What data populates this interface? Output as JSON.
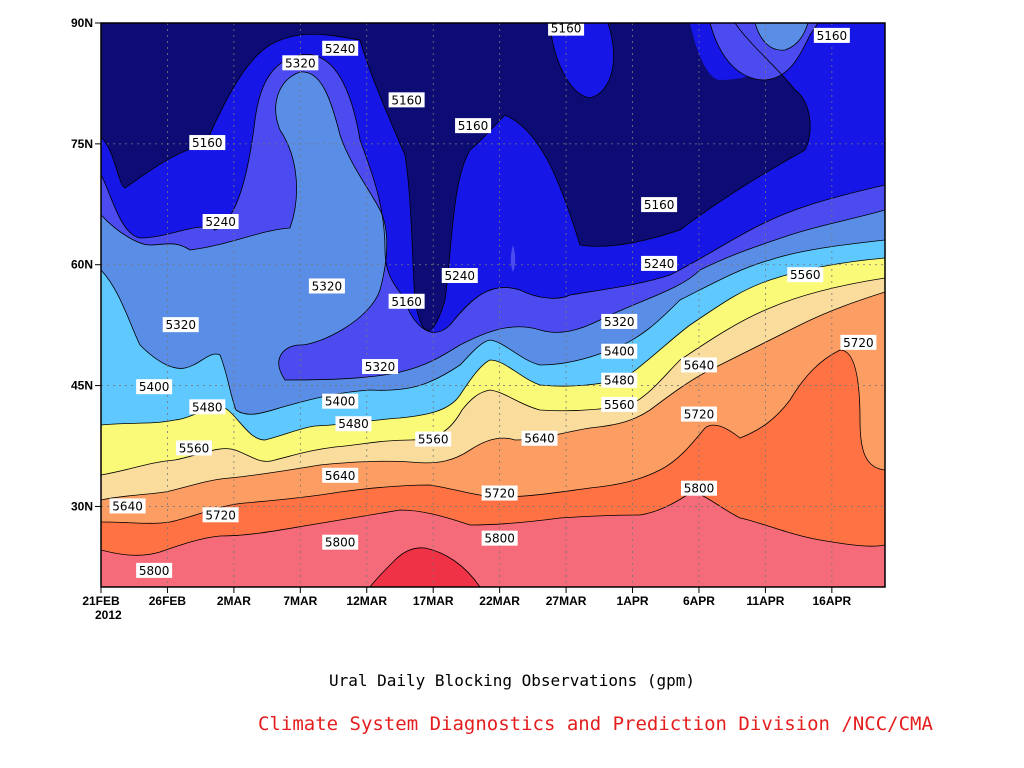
{
  "chart_data": {
    "type": "heatmap",
    "subtype": "filled-contour",
    "title": "Ural Daily Blocking Observations (gpm)",
    "x_label_year": "2012",
    "x_ticks": [
      "21FEB",
      "26FEB",
      "2MAR",
      "7MAR",
      "12MAR",
      "17MAR",
      "22MAR",
      "27MAR",
      "1APR",
      "6APR",
      "11APR",
      "16APR"
    ],
    "x_tick_dates": [
      "2012-02-21",
      "2012-02-26",
      "2012-03-02",
      "2012-03-07",
      "2012-03-12",
      "2012-03-17",
      "2012-03-22",
      "2012-03-27",
      "2012-04-01",
      "2012-04-06",
      "2012-04-11",
      "2012-04-16"
    ],
    "xlim": [
      "2012-02-21",
      "2012-04-20"
    ],
    "y_ticks": [
      "30N",
      "45N",
      "60N",
      "75N",
      "90N"
    ],
    "ylim": [
      20,
      90
    ],
    "units": "gpm",
    "contour_levels": [
      5160,
      5240,
      5320,
      5400,
      5480,
      5560,
      5640,
      5720,
      5800
    ],
    "level_colors": {
      "below_5160": "#0c0c74",
      "5160_5240": "#1616e6",
      "5240_5320": "#4b4bf0",
      "5320_5400": "#5a8ee6",
      "5400_5480": "#5ec8ff",
      "5480_5560": "#fafa78",
      "5560_5640": "#fadc9c",
      "5640_5720": "#fc9e63",
      "5720_5800": "#ff7244",
      "5800_5880": "#f56b79",
      "above_5880": "#f03246"
    },
    "contour_labels": [
      {
        "value": "5160",
        "date": "2012-03-27",
        "lat": 89.3
      },
      {
        "value": "5160",
        "date": "2012-04-16",
        "lat": 88.4
      },
      {
        "value": "5240",
        "date": "2012-03-10",
        "lat": 86.8
      },
      {
        "value": "5320",
        "date": "2012-03-07",
        "lat": 85.0
      },
      {
        "value": "5160",
        "date": "2012-03-15",
        "lat": 80.4
      },
      {
        "value": "5160",
        "date": "2012-03-20",
        "lat": 77.2
      },
      {
        "value": "5160",
        "date": "2012-02-29",
        "lat": 75.1
      },
      {
        "value": "5160",
        "date": "2012-04-03",
        "lat": 67.4
      },
      {
        "value": "5240",
        "date": "2012-03-01",
        "lat": 65.3
      },
      {
        "value": "5240",
        "date": "2012-04-03",
        "lat": 60.1
      },
      {
        "value": "5240",
        "date": "2012-03-19",
        "lat": 58.6
      },
      {
        "value": "5560",
        "date": "2012-04-14",
        "lat": 58.7
      },
      {
        "value": "5320",
        "date": "2012-03-09",
        "lat": 57.3
      },
      {
        "value": "5160",
        "date": "2012-03-15",
        "lat": 55.4
      },
      {
        "value": "5320",
        "date": "2012-02-27",
        "lat": 52.5
      },
      {
        "value": "5320",
        "date": "2012-03-31",
        "lat": 52.9
      },
      {
        "value": "5720",
        "date": "2012-04-18",
        "lat": 50.3
      },
      {
        "value": "5400",
        "date": "2012-03-31",
        "lat": 49.2
      },
      {
        "value": "5640",
        "date": "2012-04-06",
        "lat": 47.5
      },
      {
        "value": "5320",
        "date": "2012-03-13",
        "lat": 47.3
      },
      {
        "value": "5480",
        "date": "2012-03-31",
        "lat": 45.6
      },
      {
        "value": "5400",
        "date": "2012-02-25",
        "lat": 44.8
      },
      {
        "value": "5400",
        "date": "2012-03-10",
        "lat": 43.0
      },
      {
        "value": "5560",
        "date": "2012-03-31",
        "lat": 42.6
      },
      {
        "value": "5480",
        "date": "2012-02-29",
        "lat": 42.3
      },
      {
        "value": "5720",
        "date": "2012-04-06",
        "lat": 41.4
      },
      {
        "value": "5480",
        "date": "2012-03-11",
        "lat": 40.2
      },
      {
        "value": "5560",
        "date": "2012-03-17",
        "lat": 38.3
      },
      {
        "value": "5640",
        "date": "2012-03-25",
        "lat": 38.4
      },
      {
        "value": "5560",
        "date": "2012-02-28",
        "lat": 37.2
      },
      {
        "value": "5640",
        "date": "2012-03-10",
        "lat": 33.8
      },
      {
        "value": "5800",
        "date": "2012-04-06",
        "lat": 32.2
      },
      {
        "value": "5720",
        "date": "2012-03-22",
        "lat": 31.6
      },
      {
        "value": "5640",
        "date": "2012-02-23",
        "lat": 30.0
      },
      {
        "value": "5720",
        "date": "2012-03-01",
        "lat": 28.9
      },
      {
        "value": "5800",
        "date": "2012-03-22",
        "lat": 26.0
      },
      {
        "value": "5800",
        "date": "2012-03-10",
        "lat": 25.5
      },
      {
        "value": "5800",
        "date": "2012-02-25",
        "lat": 22.0
      }
    ]
  },
  "caption": {
    "title": "Ural Daily Blocking Observations (gpm)",
    "credit": "Climate System Diagnostics and Prediction Division /NCC/CMA",
    "credit_color": "#e41e1e"
  }
}
